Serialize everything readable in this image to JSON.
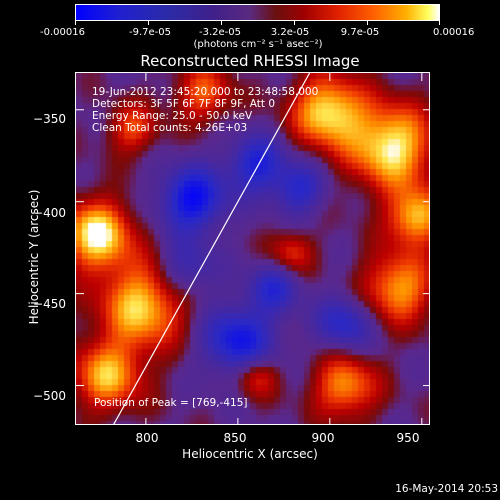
{
  "colorbar": {
    "ticks": [
      "-0.00016",
      "-9.7e-05",
      "-3.2e-05",
      "3.2e-05",
      "9.7e-05",
      "0.00016"
    ],
    "unit": "(photons cm⁻² s⁻¹ asec⁻²)"
  },
  "title": "Reconstructed RHESSI Image",
  "info": {
    "line1": "19-Jun-2012 23:45:20.000 to 23:48:58.000",
    "line2": "Detectors: 3F 5F 6F 7F 8F 9F, Att 0",
    "line3": "Energy Range: 25.0 - 50.0 keV",
    "line4": "Clean     Total counts: 4.26E+03"
  },
  "peak": "Position of Peak = [769,-415]",
  "chart_data": {
    "type": "heatmap",
    "title": "Reconstructed RHESSI Image",
    "xlabel": "Heliocentric X (arcsec)",
    "ylabel": "Heliocentric Y (arcsec)",
    "xlim": [
      762,
      955
    ],
    "ylim": [
      -522,
      -330
    ],
    "xticks": [
      800,
      850,
      900,
      950
    ],
    "yticks": [
      -350,
      -400,
      -450,
      -500
    ],
    "colorbar_range": [
      -0.00016,
      0.00016
    ],
    "limb_line": [
      [
        782,
        -522
      ],
      [
        889,
        -330
      ]
    ]
  },
  "xaxis": {
    "tick_labels": [
      "800",
      "850",
      "900",
      "950"
    ],
    "label": "Heliocentric X (arcsec)"
  },
  "yaxis": {
    "tick_labels": [
      "−350",
      "−400",
      "−450",
      "−500"
    ],
    "label": "Heliocentric Y (arcsec)"
  },
  "footer": "16-May-2014 20:53"
}
